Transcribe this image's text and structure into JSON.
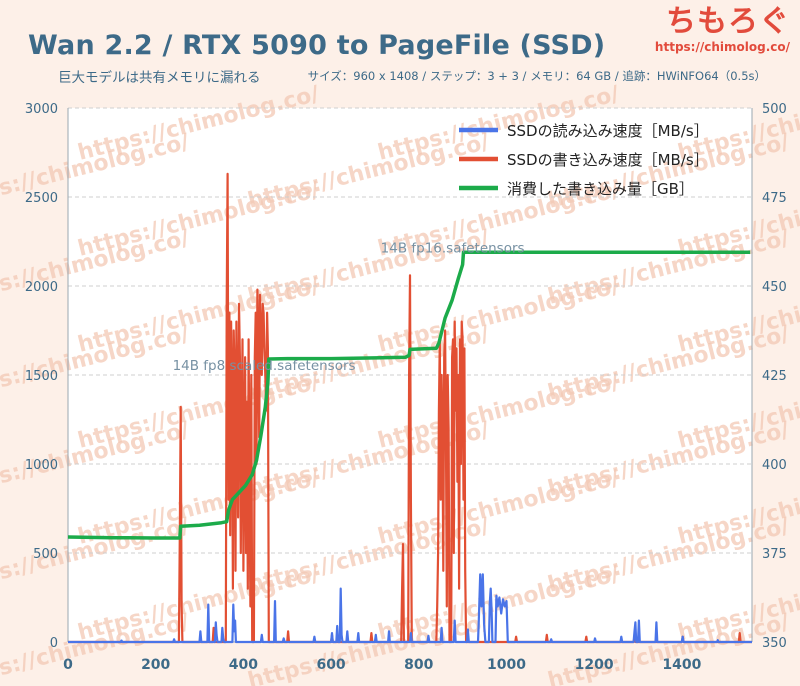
{
  "header": {
    "title": "Wan 2.2 / RTX 5090 to PageFile (SSD)",
    "subtitle": "巨大モデルは共有メモリに漏れる",
    "meta": "サイズ：960 x 1408 / ステップ：3 + 3 / メモリ：64 GB / 追跡：HWiNFO64（0.5s）"
  },
  "brand": {
    "name": "ちもろぐ",
    "url": "https://chimolog.co/"
  },
  "watermark_text": "https://chimolog.co/",
  "colors": {
    "background": "#fdf0e8",
    "read": "#4a74e8",
    "write": "#e24f33",
    "consumed": "#1cab4a",
    "axis_text": "#3d6a88",
    "watermark": "#f3c9b5"
  },
  "chart_data": {
    "type": "line",
    "title": "Wan 2.2 / RTX 5090 to PageFile (SSD)",
    "xlabel": "",
    "ylabel": "",
    "xlim": [
      0,
      1560
    ],
    "ylim": [
      0,
      3000
    ],
    "y2lim": [
      350,
      500
    ],
    "x_ticks": [
      0,
      200,
      400,
      600,
      800,
      1000,
      1200,
      1400
    ],
    "y_ticks": [
      0,
      500,
      1000,
      1500,
      2000,
      2500,
      3000
    ],
    "y2_ticks": [
      350,
      375,
      400,
      425,
      450,
      475,
      500
    ],
    "grid": true,
    "legend_position": "top-right",
    "annotations": [
      {
        "text": "14B fp8 scaled.safetensors",
        "x": 470,
        "y2": 423
      },
      {
        "text": "14B fp16.safetensors",
        "x": 900,
        "y2": 456
      }
    ],
    "series": [
      {
        "name": "SSDの読み込み速度［MB/s］",
        "axis": "left",
        "color": "#4a74e8",
        "points": [
          [
            0,
            0
          ],
          [
            120,
            0
          ],
          [
            122,
            8
          ],
          [
            124,
            0
          ],
          [
            240,
            0
          ],
          [
            242,
            15
          ],
          [
            244,
            0
          ],
          [
            300,
            0
          ],
          [
            302,
            60
          ],
          [
            304,
            0
          ],
          [
            318,
            0
          ],
          [
            320,
            210
          ],
          [
            322,
            0
          ],
          [
            335,
            0
          ],
          [
            337,
            110
          ],
          [
            339,
            40
          ],
          [
            341,
            0
          ],
          [
            350,
            0
          ],
          [
            352,
            80
          ],
          [
            354,
            20
          ],
          [
            356,
            0
          ],
          [
            375,
            0
          ],
          [
            377,
            210
          ],
          [
            379,
            60
          ],
          [
            381,
            120
          ],
          [
            383,
            0
          ],
          [
            440,
            0
          ],
          [
            442,
            40
          ],
          [
            444,
            0
          ],
          [
            470,
            0
          ],
          [
            472,
            230
          ],
          [
            474,
            0
          ],
          [
            490,
            0
          ],
          [
            492,
            20
          ],
          [
            494,
            0
          ],
          [
            560,
            0
          ],
          [
            562,
            30
          ],
          [
            564,
            0
          ],
          [
            600,
            0
          ],
          [
            602,
            50
          ],
          [
            604,
            0
          ],
          [
            612,
            0
          ],
          [
            614,
            90
          ],
          [
            616,
            0
          ],
          [
            620,
            0
          ],
          [
            622,
            300
          ],
          [
            624,
            40
          ],
          [
            626,
            0
          ],
          [
            635,
            0
          ],
          [
            637,
            60
          ],
          [
            639,
            0
          ],
          [
            660,
            0
          ],
          [
            662,
            50
          ],
          [
            664,
            0
          ],
          [
            700,
            0
          ],
          [
            702,
            40
          ],
          [
            704,
            0
          ],
          [
            730,
            0
          ],
          [
            732,
            60
          ],
          [
            734,
            0
          ],
          [
            780,
            0
          ],
          [
            782,
            50
          ],
          [
            784,
            0
          ],
          [
            820,
            0
          ],
          [
            822,
            35
          ],
          [
            824,
            0
          ],
          [
            850,
            0
          ],
          [
            852,
            80
          ],
          [
            854,
            0
          ],
          [
            880,
            0
          ],
          [
            882,
            120
          ],
          [
            884,
            0
          ],
          [
            910,
            0
          ],
          [
            912,
            70
          ],
          [
            914,
            0
          ],
          [
            935,
            0
          ],
          [
            937,
            120
          ],
          [
            940,
            380
          ],
          [
            943,
            200
          ],
          [
            946,
            380
          ],
          [
            949,
            100
          ],
          [
            952,
            0
          ],
          [
            960,
            0
          ],
          [
            962,
            220
          ],
          [
            964,
            300
          ],
          [
            966,
            180
          ],
          [
            968,
            0
          ],
          [
            975,
            0
          ],
          [
            977,
            260
          ],
          [
            980,
            200
          ],
          [
            984,
            250
          ],
          [
            988,
            160
          ],
          [
            992,
            240
          ],
          [
            996,
            200
          ],
          [
            1000,
            230
          ],
          [
            1003,
            0
          ],
          [
            1100,
            0
          ],
          [
            1102,
            15
          ],
          [
            1104,
            0
          ],
          [
            1200,
            0
          ],
          [
            1202,
            20
          ],
          [
            1204,
            0
          ],
          [
            1260,
            0
          ],
          [
            1262,
            30
          ],
          [
            1264,
            0
          ],
          [
            1290,
            0
          ],
          [
            1292,
            60
          ],
          [
            1294,
            110
          ],
          [
            1296,
            0
          ],
          [
            1300,
            0
          ],
          [
            1302,
            120
          ],
          [
            1304,
            0
          ],
          [
            1340,
            0
          ],
          [
            1342,
            110
          ],
          [
            1344,
            0
          ],
          [
            1400,
            0
          ],
          [
            1402,
            30
          ],
          [
            1404,
            0
          ],
          [
            1480,
            0
          ],
          [
            1482,
            10
          ],
          [
            1484,
            0
          ],
          [
            1560,
            0
          ]
        ]
      },
      {
        "name": "SSDの書き込み速度［MB/s］",
        "axis": "left",
        "color": "#e24f33",
        "points": [
          [
            0,
            0
          ],
          [
            253,
            0
          ],
          [
            255,
            600
          ],
          [
            257,
            1320
          ],
          [
            259,
            200
          ],
          [
            261,
            0
          ],
          [
            330,
            0
          ],
          [
            332,
            80
          ],
          [
            334,
            0
          ],
          [
            360,
            0
          ],
          [
            362,
            1900
          ],
          [
            364,
            2630
          ],
          [
            366,
            800
          ],
          [
            368,
            1850
          ],
          [
            370,
            600
          ],
          [
            372,
            1800
          ],
          [
            374,
            1400
          ],
          [
            376,
            300
          ],
          [
            378,
            1750
          ],
          [
            380,
            1500
          ],
          [
            382,
            400
          ],
          [
            384,
            1800
          ],
          [
            386,
            1300
          ],
          [
            388,
            700
          ],
          [
            390,
            1900
          ],
          [
            392,
            1600
          ],
          [
            394,
            500
          ],
          [
            396,
            1200
          ],
          [
            398,
            1700
          ],
          [
            400,
            400
          ],
          [
            402,
            1100
          ],
          [
            404,
            1600
          ],
          [
            406,
            500
          ],
          [
            408,
            1350
          ],
          [
            410,
            300
          ],
          [
            412,
            1700
          ],
          [
            414,
            900
          ],
          [
            416,
            200
          ],
          [
            418,
            1500
          ],
          [
            420,
            0
          ],
          [
            424,
            0
          ],
          [
            426,
            1600
          ],
          [
            428,
            1850
          ],
          [
            430,
            1000
          ],
          [
            432,
            1980
          ],
          [
            434,
            1700
          ],
          [
            436,
            1150
          ],
          [
            438,
            1950
          ],
          [
            440,
            1700
          ],
          [
            442,
            1500
          ],
          [
            444,
            1900
          ],
          [
            446,
            1850
          ],
          [
            448,
            1650
          ],
          [
            450,
            1500
          ],
          [
            452,
            1300
          ],
          [
            454,
            1850
          ],
          [
            456,
            1650
          ],
          [
            458,
            0
          ],
          [
            500,
            0
          ],
          [
            502,
            60
          ],
          [
            504,
            0
          ],
          [
            600,
            0
          ],
          [
            602,
            40
          ],
          [
            604,
            0
          ],
          [
            690,
            0
          ],
          [
            692,
            50
          ],
          [
            694,
            0
          ],
          [
            760,
            0
          ],
          [
            762,
            300
          ],
          [
            764,
            550
          ],
          [
            766,
            0
          ],
          [
            776,
            0
          ],
          [
            778,
            1500
          ],
          [
            780,
            2060
          ],
          [
            782,
            800
          ],
          [
            784,
            0
          ],
          [
            840,
            0
          ],
          [
            842,
            200
          ],
          [
            844,
            500
          ],
          [
            846,
            1300
          ],
          [
            848,
            1700
          ],
          [
            850,
            800
          ],
          [
            852,
            1500
          ],
          [
            854,
            1200
          ],
          [
            856,
            400
          ],
          [
            858,
            1600
          ],
          [
            860,
            1750
          ],
          [
            862,
            1100
          ],
          [
            864,
            200
          ],
          [
            866,
            1500
          ],
          [
            868,
            1200
          ],
          [
            870,
            0
          ],
          [
            874,
            0
          ],
          [
            876,
            1600
          ],
          [
            878,
            1700
          ],
          [
            880,
            500
          ],
          [
            882,
            1800
          ],
          [
            884,
            1300
          ],
          [
            886,
            1650
          ],
          [
            888,
            900
          ],
          [
            890,
            1500
          ],
          [
            892,
            300
          ],
          [
            894,
            1700
          ],
          [
            896,
            1000
          ],
          [
            898,
            1800
          ],
          [
            900,
            1700
          ],
          [
            902,
            800
          ],
          [
            904,
            1650
          ],
          [
            906,
            400
          ],
          [
            908,
            0
          ],
          [
            1020,
            0
          ],
          [
            1022,
            30
          ],
          [
            1024,
            0
          ],
          [
            1090,
            0
          ],
          [
            1092,
            40
          ],
          [
            1094,
            0
          ],
          [
            1180,
            0
          ],
          [
            1182,
            30
          ],
          [
            1184,
            0
          ],
          [
            1290,
            0
          ],
          [
            1292,
            30
          ],
          [
            1294,
            0
          ],
          [
            1400,
            0
          ],
          [
            1402,
            30
          ],
          [
            1404,
            0
          ],
          [
            1530,
            0
          ],
          [
            1532,
            50
          ],
          [
            1534,
            0
          ],
          [
            1560,
            0
          ]
        ]
      },
      {
        "name": "消費した書き込み量［GB］",
        "axis": "right",
        "color": "#1cab4a",
        "points": [
          [
            0,
            379.5
          ],
          [
            100,
            379.3
          ],
          [
            200,
            379.2
          ],
          [
            255,
            379.2
          ],
          [
            257,
            382.5
          ],
          [
            300,
            382.8
          ],
          [
            350,
            383.5
          ],
          [
            362,
            383.8
          ],
          [
            366,
            387
          ],
          [
            375,
            390
          ],
          [
            390,
            392
          ],
          [
            405,
            394
          ],
          [
            420,
            397
          ],
          [
            430,
            401
          ],
          [
            440,
            408
          ],
          [
            450,
            416
          ],
          [
            456,
            423
          ],
          [
            458,
            429.5
          ],
          [
            500,
            429.6
          ],
          [
            600,
            429.6
          ],
          [
            700,
            429.8
          ],
          [
            770,
            430
          ],
          [
            778,
            430.5
          ],
          [
            780,
            432.2
          ],
          [
            800,
            432.3
          ],
          [
            840,
            432.5
          ],
          [
            846,
            434
          ],
          [
            860,
            441
          ],
          [
            876,
            446
          ],
          [
            890,
            452
          ],
          [
            900,
            456
          ],
          [
            902,
            459.5
          ],
          [
            1000,
            459.5
          ],
          [
            1200,
            459.5
          ],
          [
            1400,
            459.5
          ],
          [
            1556,
            459.5
          ]
        ]
      }
    ]
  }
}
